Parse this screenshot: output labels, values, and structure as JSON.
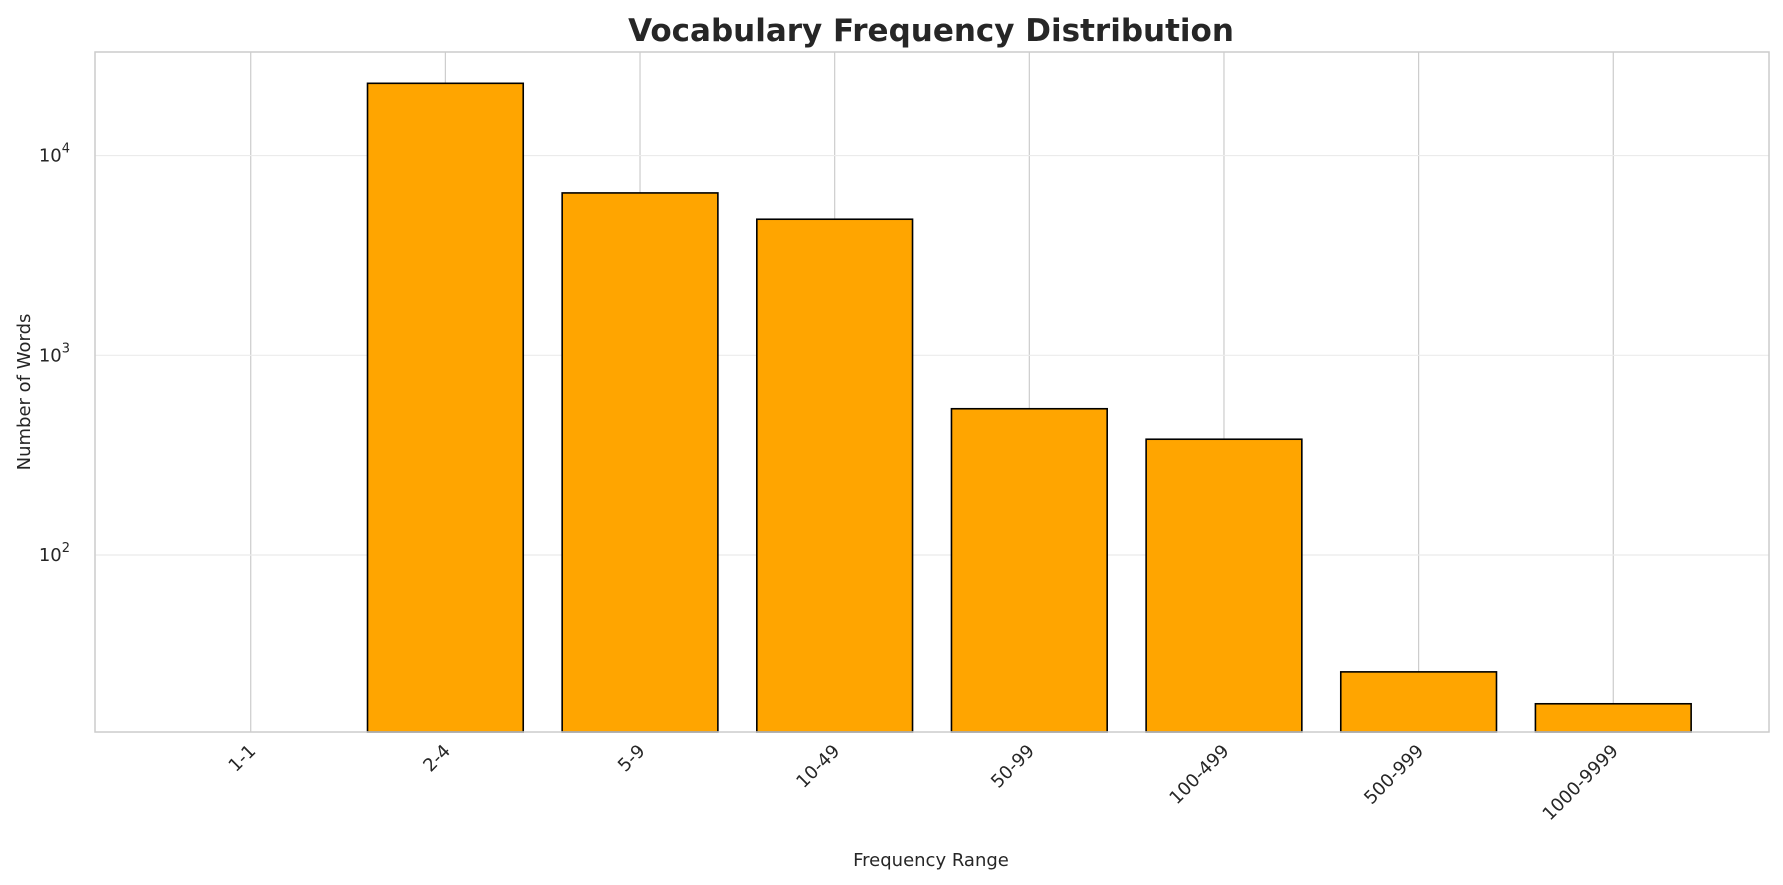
{
  "chart_data": {
    "type": "bar",
    "title": "Vocabulary Frequency Distribution",
    "xlabel": "Frequency Range",
    "ylabel": "Number of Words",
    "categories": [
      "1-1",
      "2-4",
      "5-9",
      "10-49",
      "50-99",
      "100-499",
      "500-999",
      "1000-9999"
    ],
    "values": [
      0,
      23000,
      6500,
      4800,
      540,
      380,
      26,
      18
    ],
    "y_scale": "log",
    "ylim": [
      13,
      33000
    ],
    "y_ticks": [
      {
        "value": 100,
        "base": "10",
        "exp": "2"
      },
      {
        "value": 1000,
        "base": "10",
        "exp": "3"
      },
      {
        "value": 10000,
        "base": "10",
        "exp": "4"
      }
    ],
    "grid": true,
    "bar_color": "#ffa500",
    "bar_edge_color": "#000000"
  }
}
